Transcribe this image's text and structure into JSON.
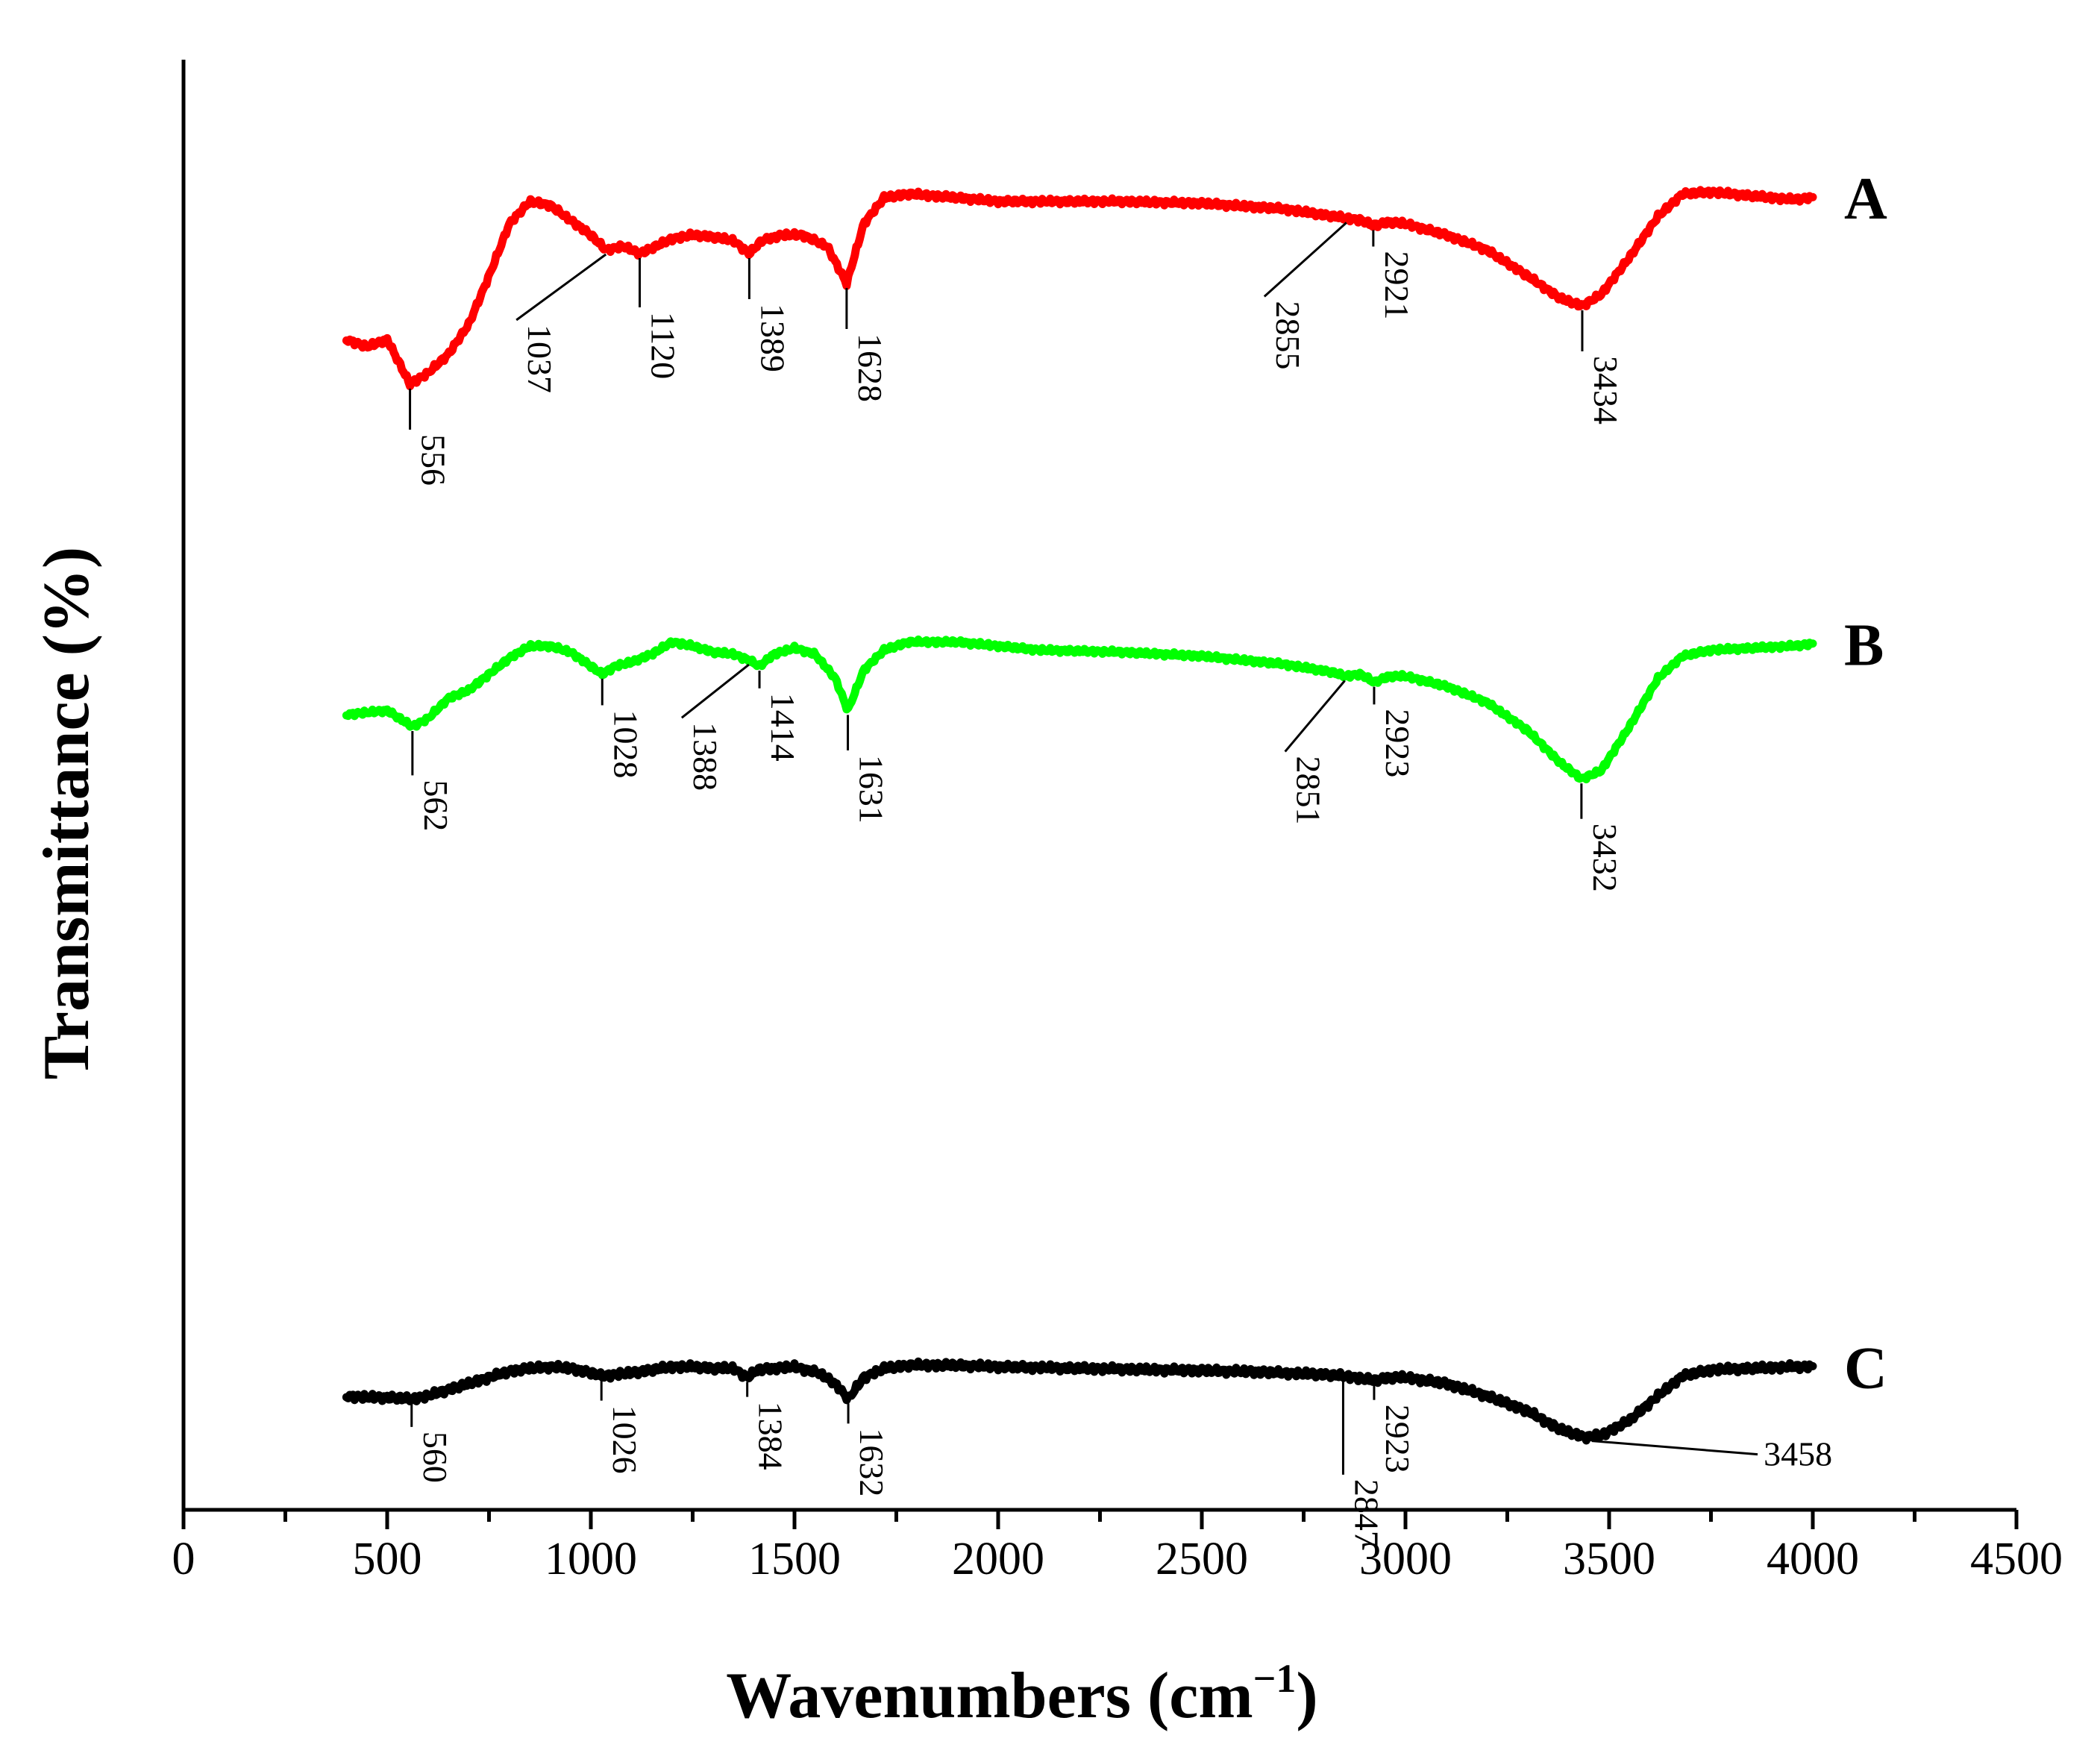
{
  "chart_data": {
    "type": "line",
    "title": "",
    "xlabel": "Wavenumbers (cm",
    "xlabel_sup": "−1",
    "xlabel_close": ")",
    "ylabel": "Transmittance (%)",
    "xlim": [
      0,
      4500
    ],
    "xticks": [
      "0",
      "500",
      "1000",
      "1500",
      "2000",
      "2500",
      "3000",
      "3500",
      "4000",
      "4500"
    ],
    "yticks": "none",
    "grid": false,
    "series": [
      {
        "name": "A",
        "color": "#ff0000",
        "baseline": 0.62,
        "wiggle": 0.008,
        "points": [
          [
            400,
            0.41
          ],
          [
            450,
            0.39
          ],
          [
            500,
            0.41
          ],
          [
            556,
            0.29
          ],
          [
            600,
            0.32
          ],
          [
            650,
            0.37
          ],
          [
            700,
            0.45
          ],
          [
            750,
            0.58
          ],
          [
            800,
            0.72
          ],
          [
            850,
            0.78
          ],
          [
            900,
            0.77
          ],
          [
            950,
            0.73
          ],
          [
            1000,
            0.69
          ],
          [
            1037,
            0.65
          ],
          [
            1080,
            0.66
          ],
          [
            1120,
            0.64
          ],
          [
            1160,
            0.66
          ],
          [
            1200,
            0.68
          ],
          [
            1250,
            0.69
          ],
          [
            1300,
            0.685
          ],
          [
            1350,
            0.675
          ],
          [
            1389,
            0.64
          ],
          [
            1420,
            0.675
          ],
          [
            1470,
            0.69
          ],
          [
            1520,
            0.69
          ],
          [
            1580,
            0.66
          ],
          [
            1628,
            0.56
          ],
          [
            1670,
            0.72
          ],
          [
            1720,
            0.79
          ],
          [
            1780,
            0.8
          ],
          [
            1900,
            0.79
          ],
          [
            2000,
            0.78
          ],
          [
            2150,
            0.78
          ],
          [
            2300,
            0.78
          ],
          [
            2500,
            0.775
          ],
          [
            2700,
            0.76
          ],
          [
            2855,
            0.735
          ],
          [
            2890,
            0.73
          ],
          [
            2921,
            0.715
          ],
          [
            2960,
            0.725
          ],
          [
            3000,
            0.72
          ],
          [
            3100,
            0.69
          ],
          [
            3200,
            0.65
          ],
          [
            3300,
            0.58
          ],
          [
            3380,
            0.52
          ],
          [
            3434,
            0.5
          ],
          [
            3480,
            0.53
          ],
          [
            3550,
            0.63
          ],
          [
            3620,
            0.74
          ],
          [
            3680,
            0.8
          ],
          [
            3750,
            0.805
          ],
          [
            3850,
            0.795
          ],
          [
            3950,
            0.785
          ],
          [
            4000,
            0.79
          ]
        ]
      },
      {
        "name": "B",
        "color": "#00ff00",
        "baseline": 0.63,
        "wiggle": 0.006,
        "points": [
          [
            400,
            0.43
          ],
          [
            450,
            0.435
          ],
          [
            500,
            0.44
          ],
          [
            562,
            0.4
          ],
          [
            600,
            0.42
          ],
          [
            650,
            0.47
          ],
          [
            700,
            0.49
          ],
          [
            750,
            0.53
          ],
          [
            800,
            0.57
          ],
          [
            850,
            0.6
          ],
          [
            900,
            0.6
          ],
          [
            950,
            0.585
          ],
          [
            1000,
            0.55
          ],
          [
            1028,
            0.53
          ],
          [
            1060,
            0.55
          ],
          [
            1100,
            0.56
          ],
          [
            1150,
            0.58
          ],
          [
            1200,
            0.61
          ],
          [
            1250,
            0.6
          ],
          [
            1300,
            0.585
          ],
          [
            1350,
            0.58
          ],
          [
            1388,
            0.565
          ],
          [
            1414,
            0.55
          ],
          [
            1450,
            0.58
          ],
          [
            1500,
            0.595
          ],
          [
            1550,
            0.58
          ],
          [
            1600,
            0.52
          ],
          [
            1631,
            0.44
          ],
          [
            1670,
            0.54
          ],
          [
            1720,
            0.59
          ],
          [
            1780,
            0.61
          ],
          [
            1900,
            0.61
          ],
          [
            2000,
            0.6
          ],
          [
            2100,
            0.59
          ],
          [
            2300,
            0.585
          ],
          [
            2500,
            0.575
          ],
          [
            2700,
            0.555
          ],
          [
            2820,
            0.535
          ],
          [
            2851,
            0.525
          ],
          [
            2890,
            0.53
          ],
          [
            2923,
            0.51
          ],
          [
            2960,
            0.525
          ],
          [
            3000,
            0.525
          ],
          [
            3100,
            0.5
          ],
          [
            3200,
            0.46
          ],
          [
            3300,
            0.39
          ],
          [
            3380,
            0.31
          ],
          [
            3432,
            0.27
          ],
          [
            3480,
            0.29
          ],
          [
            3550,
            0.4
          ],
          [
            3620,
            0.52
          ],
          [
            3680,
            0.575
          ],
          [
            3750,
            0.59
          ],
          [
            3850,
            0.595
          ],
          [
            3950,
            0.6
          ],
          [
            4000,
            0.605
          ]
        ]
      },
      {
        "name": "C",
        "color": "#000000",
        "baseline": 0.64,
        "wiggle": 0.012,
        "points": [
          [
            400,
            0.18
          ],
          [
            450,
            0.175
          ],
          [
            500,
            0.175
          ],
          [
            560,
            0.17
          ],
          [
            600,
            0.18
          ],
          [
            650,
            0.2
          ],
          [
            700,
            0.22
          ],
          [
            750,
            0.24
          ],
          [
            800,
            0.26
          ],
          [
            850,
            0.27
          ],
          [
            900,
            0.275
          ],
          [
            950,
            0.27
          ],
          [
            1000,
            0.255
          ],
          [
            1026,
            0.245
          ],
          [
            1060,
            0.25
          ],
          [
            1100,
            0.255
          ],
          [
            1150,
            0.265
          ],
          [
            1200,
            0.275
          ],
          [
            1250,
            0.275
          ],
          [
            1300,
            0.27
          ],
          [
            1350,
            0.27
          ],
          [
            1384,
            0.24
          ],
          [
            1410,
            0.265
          ],
          [
            1450,
            0.27
          ],
          [
            1500,
            0.275
          ],
          [
            1560,
            0.255
          ],
          [
            1600,
            0.22
          ],
          [
            1632,
            0.17
          ],
          [
            1670,
            0.24
          ],
          [
            1720,
            0.27
          ],
          [
            1780,
            0.28
          ],
          [
            1900,
            0.28
          ],
          [
            2000,
            0.275
          ],
          [
            2200,
            0.27
          ],
          [
            2400,
            0.265
          ],
          [
            2600,
            0.26
          ],
          [
            2800,
            0.25
          ],
          [
            2847,
            0.245
          ],
          [
            2880,
            0.24
          ],
          [
            2923,
            0.23
          ],
          [
            2960,
            0.24
          ],
          [
            3000,
            0.24
          ],
          [
            3100,
            0.22
          ],
          [
            3200,
            0.18
          ],
          [
            3300,
            0.13
          ],
          [
            3380,
            0.07
          ],
          [
            3440,
            0.045
          ],
          [
            3480,
            0.05
          ],
          [
            3550,
            0.1
          ],
          [
            3620,
            0.18
          ],
          [
            3680,
            0.245
          ],
          [
            3750,
            0.265
          ],
          [
            3850,
            0.27
          ],
          [
            3950,
            0.275
          ],
          [
            4000,
            0.275
          ]
        ]
      }
    ],
    "annotations": [
      {
        "series": "A",
        "label": "556",
        "x": 556,
        "style": "down",
        "len": 0.05
      },
      {
        "series": "A",
        "label": "1037",
        "x": 1037,
        "style": "diag",
        "dx": -120,
        "len": 0.08
      },
      {
        "series": "A",
        "label": "1120",
        "x": 1120,
        "style": "down",
        "len": 0.06
      },
      {
        "series": "A",
        "label": "1389",
        "x": 1389,
        "style": "down",
        "len": 0.05
      },
      {
        "series": "A",
        "label": "1628",
        "x": 1628,
        "style": "down",
        "len": 0.05
      },
      {
        "series": "A",
        "label": "2855",
        "x": 2855,
        "style": "diag",
        "dx": -110,
        "len": 0.09
      },
      {
        "series": "A",
        "label": "2921",
        "x": 2921,
        "style": "down",
        "len": 0.02
      },
      {
        "series": "A",
        "label": "3434",
        "x": 3434,
        "style": "down",
        "len": 0.05
      },
      {
        "series": "B",
        "label": "562",
        "x": 562,
        "style": "down",
        "len": 0.05
      },
      {
        "series": "B",
        "label": "1028",
        "x": 1028,
        "style": "down",
        "len": 0.03
      },
      {
        "series": "B",
        "label": "1388",
        "x": 1388,
        "style": "diag",
        "dx": -90,
        "len": 0.06
      },
      {
        "series": "B",
        "label": "1414",
        "x": 1414,
        "style": "down",
        "len": 0.02
      },
      {
        "series": "B",
        "label": "1631",
        "x": 1631,
        "style": "down",
        "len": 0.04
      },
      {
        "series": "B",
        "label": "2851",
        "x": 2851,
        "style": "diag",
        "dx": -80,
        "len": 0.08
      },
      {
        "series": "B",
        "label": "2923",
        "x": 2923,
        "style": "down",
        "len": 0.02
      },
      {
        "series": "B",
        "label": "3432",
        "x": 3432,
        "style": "down",
        "len": 0.04
      },
      {
        "series": "C",
        "label": "560",
        "x": 560,
        "style": "down",
        "len": 0.035
      },
      {
        "series": "C",
        "label": "1026",
        "x": 1026,
        "style": "down",
        "len": 0.03
      },
      {
        "series": "C",
        "label": "1384",
        "x": 1384,
        "style": "down",
        "len": 0.02
      },
      {
        "series": "C",
        "label": "1632",
        "x": 1632,
        "style": "down",
        "len": 0.03
      },
      {
        "series": "C",
        "label": "2847",
        "x": 2847,
        "style": "down",
        "len": 0.14
      },
      {
        "series": "C",
        "label": "2923",
        "x": 2923,
        "style": "down",
        "len": 0.02
      },
      {
        "series": "C",
        "label": "3458",
        "x": 3458,
        "style": "right",
        "dx": 230
      }
    ]
  }
}
